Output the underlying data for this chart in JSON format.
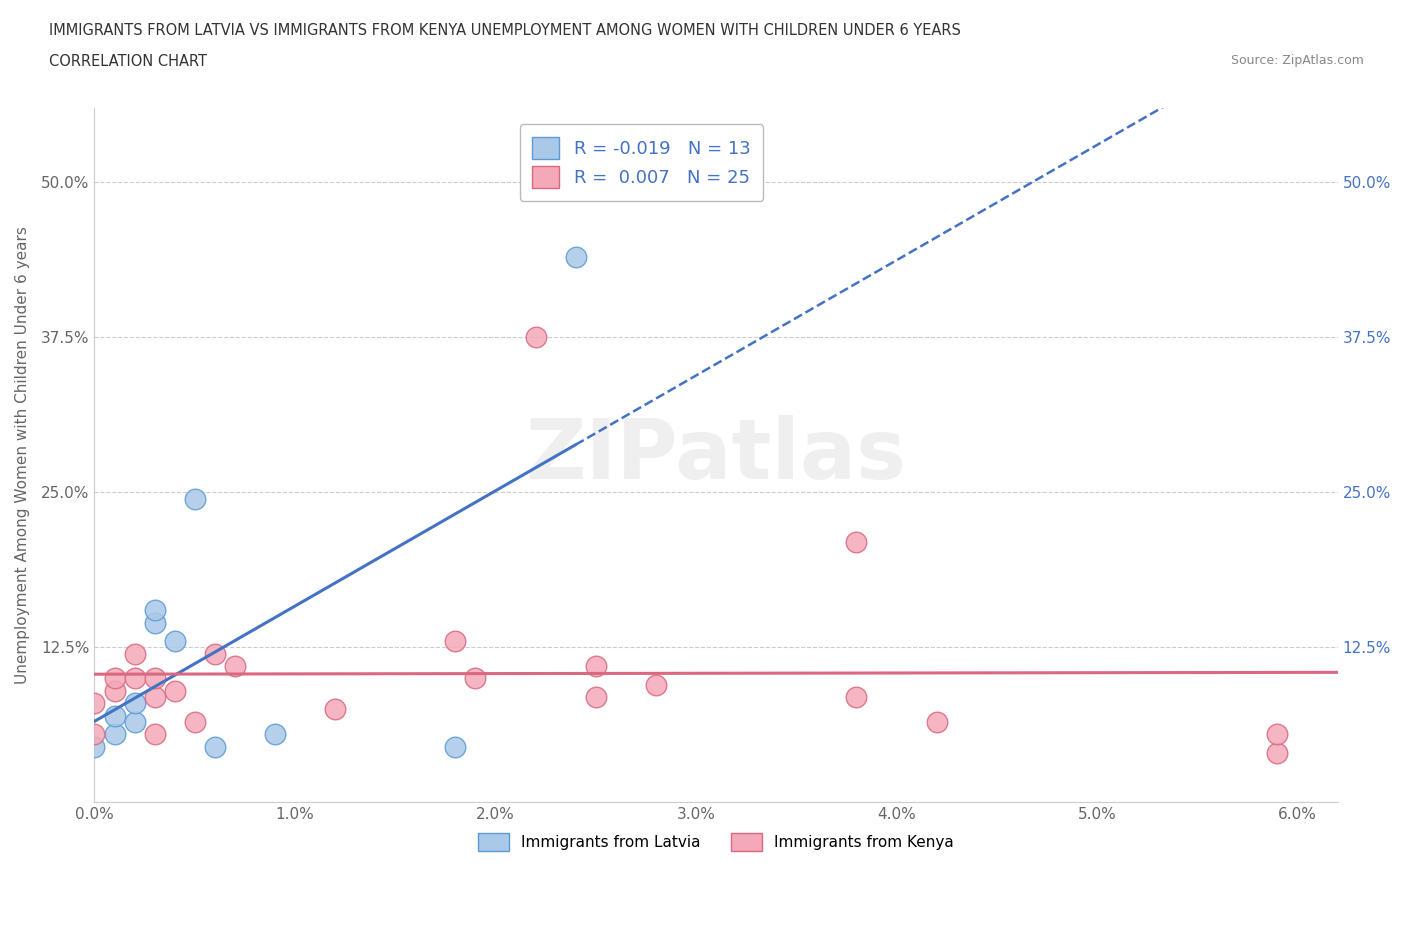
{
  "title_line1": "IMMIGRANTS FROM LATVIA VS IMMIGRANTS FROM KENYA UNEMPLOYMENT AMONG WOMEN WITH CHILDREN UNDER 6 YEARS",
  "title_line2": "CORRELATION CHART",
  "source": "Source: ZipAtlas.com",
  "ylabel": "Unemployment Among Women with Children Under 6 years",
  "xlim": [
    0.0,
    0.062
  ],
  "ylim": [
    0.0,
    0.56
  ],
  "xticks": [
    0.0,
    0.01,
    0.02,
    0.03,
    0.04,
    0.05,
    0.06
  ],
  "xticklabels": [
    "0.0%",
    "1.0%",
    "2.0%",
    "3.0%",
    "4.0%",
    "5.0%",
    "6.0%"
  ],
  "yticks": [
    0.0,
    0.125,
    0.25,
    0.375,
    0.5
  ],
  "yticklabels": [
    "",
    "12.5%",
    "25.0%",
    "37.5%",
    "50.0%"
  ],
  "latvia_R": -0.019,
  "latvia_N": 13,
  "kenya_R": 0.007,
  "kenya_N": 25,
  "latvia_color": "#aac8e8",
  "latvia_edge": "#5b9bd5",
  "kenya_color": "#f4a8b8",
  "kenya_edge": "#d96880",
  "latvia_line_color": "#4472c4",
  "kenya_line_color": "#d96880",
  "watermark": "ZIPatlas",
  "latvia_x": [
    0.0,
    0.001,
    0.001,
    0.002,
    0.002,
    0.003,
    0.003,
    0.004,
    0.005,
    0.006,
    0.009,
    0.018,
    0.024
  ],
  "latvia_y": [
    0.045,
    0.055,
    0.07,
    0.065,
    0.08,
    0.145,
    0.155,
    0.13,
    0.245,
    0.045,
    0.055,
    0.045,
    0.44
  ],
  "kenya_x": [
    0.0,
    0.0,
    0.001,
    0.001,
    0.002,
    0.002,
    0.003,
    0.003,
    0.003,
    0.004,
    0.005,
    0.006,
    0.007,
    0.012,
    0.018,
    0.019,
    0.022,
    0.025,
    0.025,
    0.028,
    0.038,
    0.042,
    0.059,
    0.059,
    0.038
  ],
  "kenya_y": [
    0.055,
    0.08,
    0.09,
    0.1,
    0.1,
    0.12,
    0.055,
    0.085,
    0.1,
    0.09,
    0.065,
    0.12,
    0.11,
    0.075,
    0.13,
    0.1,
    0.375,
    0.085,
    0.11,
    0.095,
    0.085,
    0.065,
    0.04,
    0.055,
    0.21
  ]
}
